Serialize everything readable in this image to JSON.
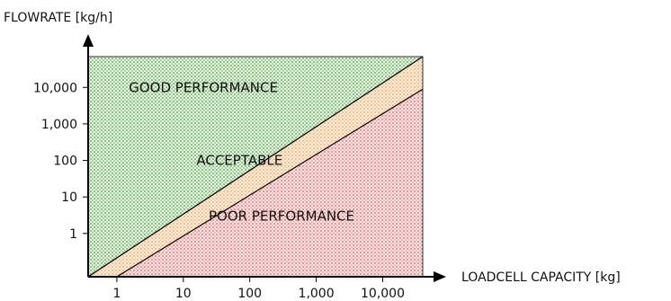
{
  "chart_data": {
    "type": "area",
    "xlabel": "LOADCELL CAPACITY [kg]",
    "ylabel": "FLOWRATE [kg/h]",
    "scale": "log",
    "x_ticks": [
      {
        "value": 1,
        "label": "1"
      },
      {
        "value": 10,
        "label": "10"
      },
      {
        "value": 100,
        "label": "100"
      },
      {
        "value": 1000,
        "label": "1,000"
      },
      {
        "value": 10000,
        "label": "10,000"
      }
    ],
    "y_ticks": [
      {
        "value": 1,
        "label": "1"
      },
      {
        "value": 10,
        "label": "10"
      },
      {
        "value": 100,
        "label": "100"
      },
      {
        "value": 1000,
        "label": "1,000"
      },
      {
        "value": 10000,
        "label": "10,000"
      }
    ],
    "xlim": [
      0.37,
      40000
    ],
    "ylim": [
      0.065,
      70000
    ],
    "boundaries": [
      {
        "name": "upper",
        "points": [
          [
            0.37,
            0.065
          ],
          [
            40000,
            70000
          ]
        ]
      },
      {
        "name": "lower",
        "points": [
          [
            1,
            0.065
          ],
          [
            40000,
            9000
          ]
        ]
      }
    ],
    "regions": [
      {
        "label": "GOOD PERFORMANCE",
        "color": "#3a9a3a",
        "at": [
          20,
          10000
        ]
      },
      {
        "label": "ACCEPTABLE",
        "color": "#e9a13b",
        "at": [
          70,
          100
        ]
      },
      {
        "label": "POOR PERFORMANCE",
        "color": "#e05a5a",
        "at": [
          300,
          3
        ]
      }
    ],
    "grid": false
  }
}
